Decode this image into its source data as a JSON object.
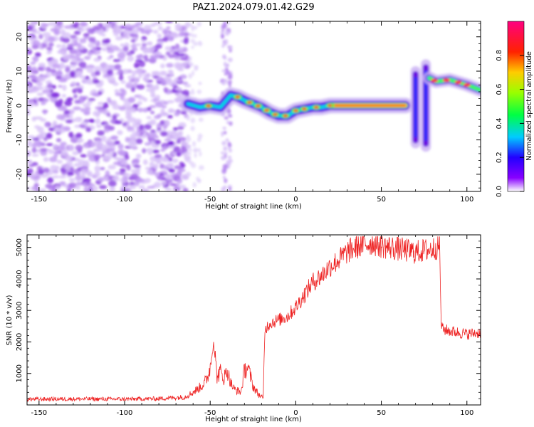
{
  "title": "PAZ1.2024.079.01.42.G29",
  "chart_data": [
    {
      "type": "heatmap",
      "xlabel": "Height of straight line (km)",
      "ylabel": "Frequency (Hz)",
      "xlim": [
        -157,
        108
      ],
      "ylim": [
        -25,
        24.5
      ],
      "xticks": [
        -150,
        -100,
        -50,
        0,
        50,
        100
      ],
      "yticks": [
        -20,
        -10,
        0,
        10,
        20
      ],
      "colorbar": {
        "label": "Normalized spectral amplitude",
        "ticks": [
          0.0,
          0.2,
          0.4,
          0.6,
          0.8
        ],
        "range": [
          0,
          1
        ],
        "colormap": "gist_rainbow (violet-blue-cyan-green-yellow-red-pink)"
      },
      "features": {
        "noise_region_x": [
          -157,
          -63
        ],
        "noise_streak_x": [
          -43,
          -38
        ],
        "signal_track": {
          "x": [
            -63,
            -56,
            -50,
            -44,
            -38,
            -34,
            -30,
            -25,
            -20,
            -15,
            -10,
            -5,
            0,
            5,
            10,
            15,
            20,
            30,
            40,
            50,
            60,
            64
          ],
          "y": [
            0.5,
            -0.5,
            0.0,
            -0.5,
            3.0,
            2.5,
            1.5,
            0.5,
            -0.5,
            -2.0,
            -3.0,
            -3.0,
            -1.5,
            -1.0,
            -0.5,
            -0.5,
            0.0,
            0.0,
            0.0,
            0.0,
            0.0,
            0.0
          ]
        },
        "blob_centers_x": [
          -51,
          -34,
          -27,
          -22,
          -17,
          -12,
          -6,
          0,
          5,
          12,
          20
        ],
        "vertical_streaks": [
          {
            "x": 70,
            "y_range": [
              -11,
              10
            ]
          },
          {
            "x": 76,
            "y_range": [
              -12,
              12
            ]
          }
        ],
        "upper_track": {
          "x": [
            78,
            82,
            90,
            100,
            108
          ],
          "y": [
            8.0,
            7.0,
            7.5,
            6.0,
            4.5
          ]
        }
      }
    },
    {
      "type": "line",
      "xlabel": "Height of straight line (km)",
      "ylabel": "SNR (10 * v/v)",
      "xlim": [
        -157,
        108
      ],
      "ylim": [
        0,
        5400
      ],
      "xticks": [
        -150,
        -100,
        -50,
        0,
        50,
        100
      ],
      "yticks": [
        1000,
        2000,
        3000,
        4000,
        5000
      ],
      "color": "#ee2222",
      "series": [
        {
          "x": [
            -157,
            -130,
            -100,
            -80,
            -65,
            -60,
            -55,
            -52,
            -50,
            -48,
            -46,
            -44,
            -42,
            -40,
            -38,
            -36,
            -32,
            -30,
            -28,
            -25,
            -22,
            -19,
            -18,
            -15,
            -10,
            -5,
            0,
            5,
            10,
            15,
            20,
            25,
            30,
            35,
            40,
            45,
            50,
            55,
            60,
            65,
            70,
            75,
            80,
            84,
            85,
            86,
            90,
            95,
            100,
            108
          ],
          "y": [
            180,
            190,
            185,
            200,
            250,
            400,
            600,
            800,
            1200,
            2000,
            900,
            1050,
            850,
            1100,
            700,
            500,
            400,
            1100,
            1200,
            600,
            350,
            200,
            2400,
            2600,
            2700,
            2800,
            3100,
            3500,
            3900,
            4100,
            4400,
            4600,
            4850,
            5000,
            5100,
            5150,
            5050,
            5000,
            4950,
            4900,
            4850,
            4900,
            4950,
            5050,
            2600,
            2400,
            2350,
            2300,
            2250,
            2300
          ]
        }
      ]
    }
  ]
}
